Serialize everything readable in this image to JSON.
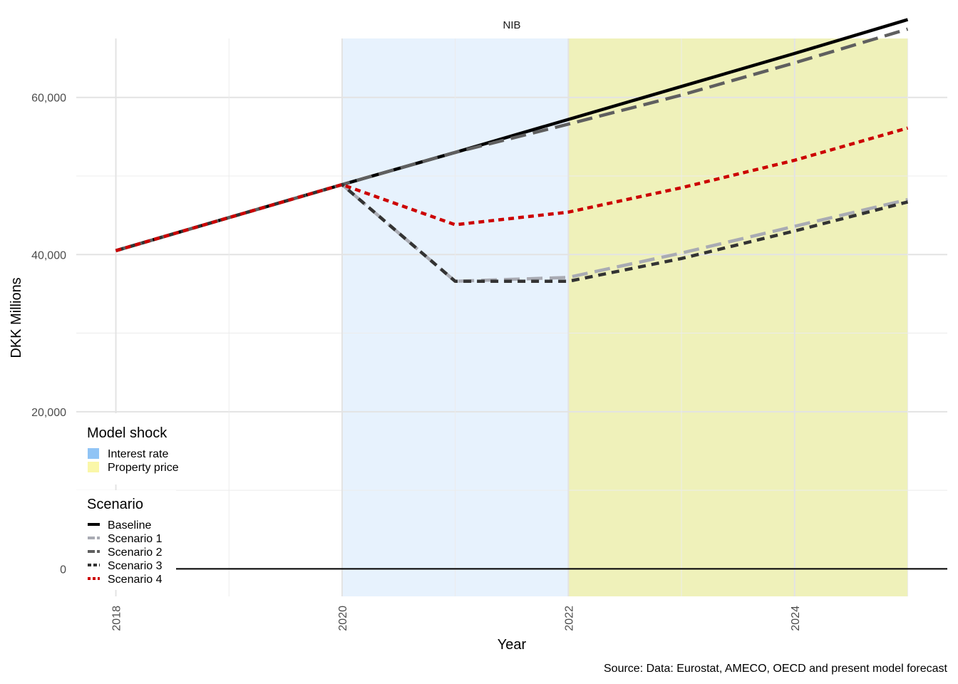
{
  "chart_data": {
    "type": "line",
    "title": "NIB",
    "xlabel": "Year",
    "ylabel": "DKK Millions",
    "caption": "Source: Data: Eurostat, AMECO, OECD and present model forecast",
    "xlim": [
      2017.65,
      2025.35
    ],
    "ylim": [
      -3500,
      67500
    ],
    "x_ticks": [
      2018,
      2020,
      2022,
      2024
    ],
    "x_tick_labels": [
      "2018",
      "2020",
      "2022",
      "2024"
    ],
    "y_ticks": [
      0,
      20000,
      40000,
      60000
    ],
    "y_tick_labels": [
      "0",
      "20,000",
      "40,000",
      "60,000"
    ],
    "x": [
      2018,
      2019,
      2020,
      2021,
      2022,
      2023,
      2024,
      2025
    ],
    "grid": true,
    "shocks": [
      {
        "name": "Interest rate",
        "from": 2020,
        "to": 2022,
        "color": "#90c4f5"
      },
      {
        "name": "Property price",
        "from": 2022,
        "to": 2025,
        "color": "#faf7a8"
      }
    ],
    "series": [
      {
        "name": "Baseline",
        "color": "#000000",
        "dash": "solid",
        "values": [
          40500,
          44700,
          48900,
          53000,
          57200,
          61400,
          65600,
          69900
        ]
      },
      {
        "name": "Scenario 1",
        "color": "#a9abb3",
        "dash": "longdash",
        "values": [
          40500,
          44700,
          48900,
          36600,
          37100,
          40200,
          43600,
          47000
        ]
      },
      {
        "name": "Scenario 2",
        "color": "#5f5f5f",
        "dash": "longdash",
        "values": [
          40500,
          44700,
          48900,
          53000,
          56600,
          60300,
          64400,
          68700
        ]
      },
      {
        "name": "Scenario 3",
        "color": "#333333",
        "dash": "shortdash",
        "values": [
          40500,
          44700,
          48900,
          36600,
          36600,
          39500,
          43000,
          46700
        ]
      },
      {
        "name": "Scenario 4",
        "color": "#cc0000",
        "dash": "dotted",
        "values": [
          40500,
          44700,
          48900,
          43800,
          45400,
          48500,
          52000,
          56100
        ]
      }
    ],
    "legend": {
      "placement": "bottom-left",
      "shock_title": "Model shock",
      "scenario_title": "Scenario"
    }
  }
}
